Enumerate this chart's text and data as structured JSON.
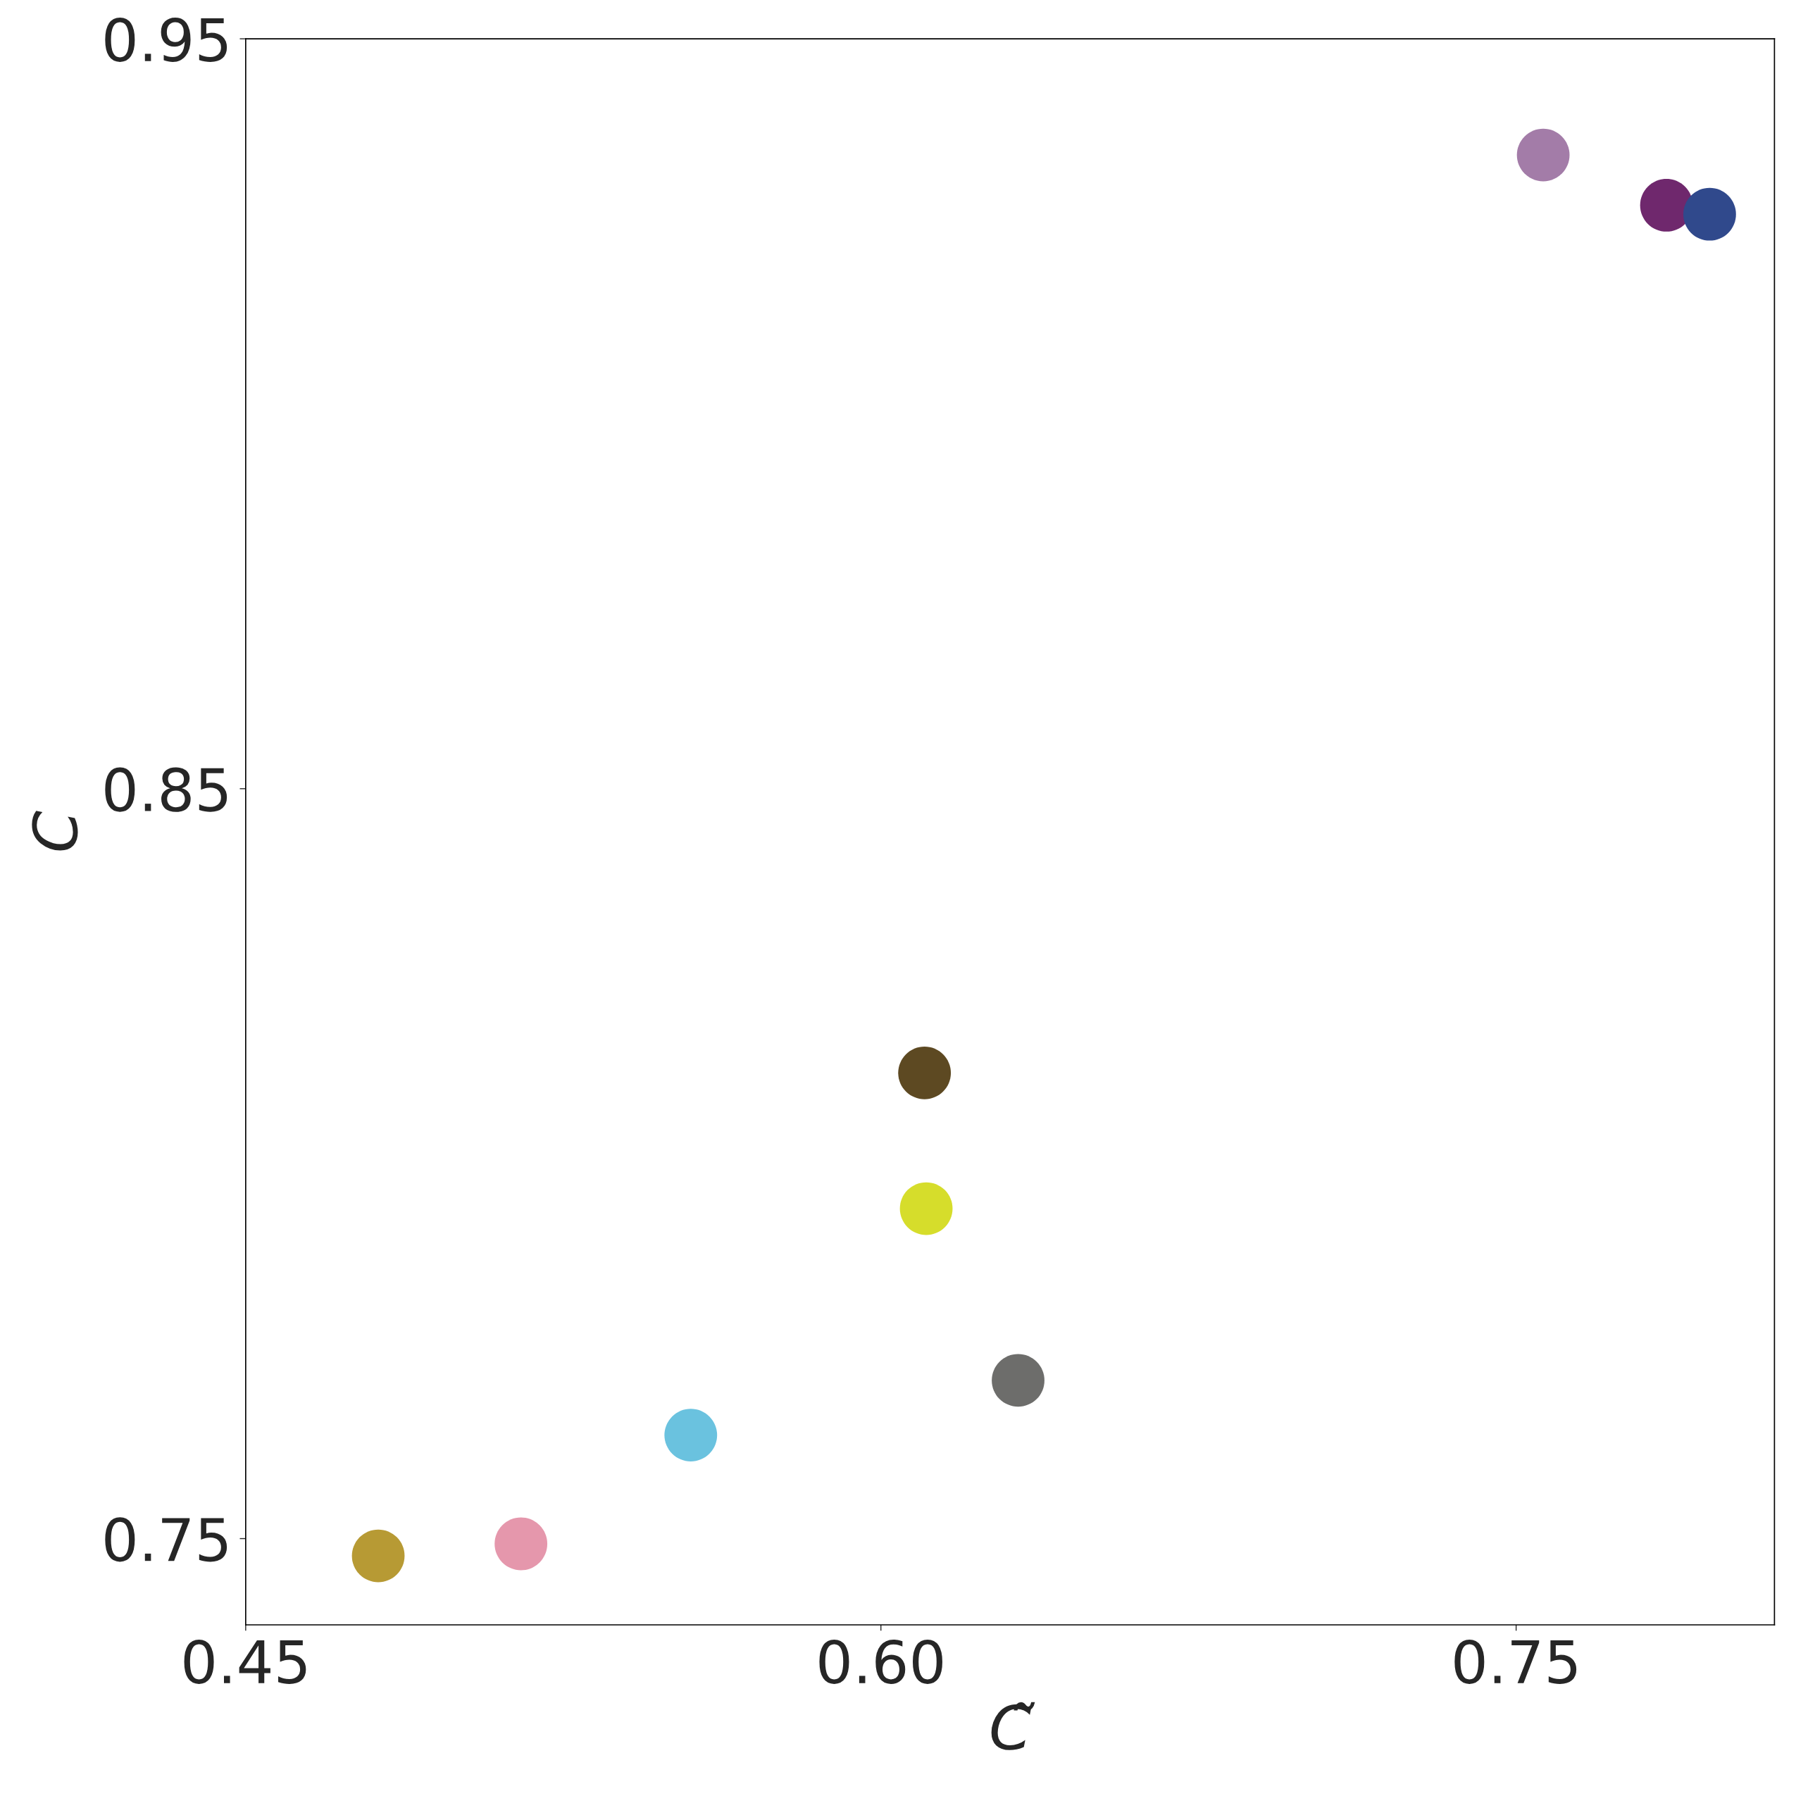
{
  "chart_data": {
    "type": "scatter",
    "xlabel": "C̃",
    "ylabel": "C",
    "x": [
      0.4813,
      0.515,
      0.5551,
      0.6103,
      0.6107,
      0.6324,
      0.7564,
      0.7855,
      0.7957
    ],
    "values": [
      0.7477,
      0.7493,
      0.7638,
      0.8121,
      0.794,
      0.7711,
      0.9345,
      0.9278,
      0.9266
    ],
    "colors": [
      "#b79a34",
      "#e597ac",
      "#6ac2df",
      "#5d4922",
      "#d6dd2b",
      "#6d6d6b",
      "#a37ca8",
      "#6f286d",
      "#30498c"
    ],
    "marker": "circle",
    "xlim": [
      0.45,
      0.811
    ],
    "ylim": [
      0.7385,
      0.95
    ],
    "xticks": [
      {
        "value": 0.45,
        "label": "0.45"
      },
      {
        "value": 0.6,
        "label": "0.60"
      },
      {
        "value": 0.75,
        "label": "0.75"
      }
    ],
    "yticks": [
      0.75,
      0.85,
      0.95
    ],
    "grid": false
  }
}
